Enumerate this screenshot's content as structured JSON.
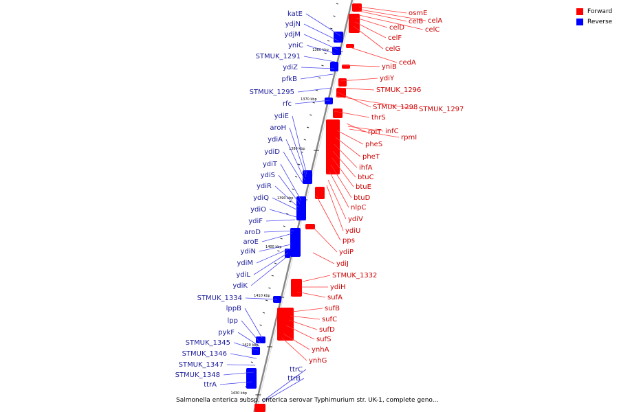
{
  "legend": {
    "forward_label": "Forward",
    "reverse_label": "Reverse",
    "forward_color": "#ff0000",
    "reverse_color": "#0000ff"
  },
  "colors": {
    "forward_label": "#cc0000",
    "reverse_label": "#1a1a99",
    "forward_line": "#ff3333",
    "reverse_line": "#4444ee",
    "backbone": "#888888"
  },
  "caption": "Salmonella enterica subsp. enterica serovar Typhimurium str. UK-1, complete geno...",
  "scale_ticks": [
    "1360 kbp",
    "1370 kbp",
    "1380 kbp",
    "1390 kbp",
    "1400 kbp",
    "1410 kbp",
    "1420 kbp",
    "1430 kbp"
  ],
  "reverse_genes": [
    "katE",
    "ydjN",
    "ydjM",
    "yniC",
    "STMUK_1291",
    "ydiZ",
    "pfkB",
    "STMUK_1295",
    "rfc",
    "ydiE",
    "aroH",
    "ydiA",
    "ydiD",
    "ydiT",
    "ydiS",
    "ydiR",
    "ydiQ",
    "ydiO",
    "ydiF",
    "aroD",
    "aroE",
    "ydiN",
    "ydiM",
    "ydiL",
    "ydiK",
    "STMUK_1334",
    "lppB",
    "lpp",
    "pykF",
    "STMUK_1345",
    "STMUK_1346",
    "STMUK_1347",
    "STMUK_1348",
    "ttrA",
    "ttrC",
    "ttrB"
  ],
  "forward_genes": [
    "osmE",
    "celA",
    "celB",
    "celC",
    "celD",
    "celF",
    "celG",
    "cedA",
    "yniB",
    "ydiY",
    "STMUK_1296",
    "STMUK_1298",
    "STMUK_1297",
    "thrS",
    "rplT",
    "infC",
    "rpmI",
    "pheS",
    "pheT",
    "ihfA",
    "btuC",
    "btuE",
    "btuD",
    "nlpC",
    "ydiV",
    "ydiU",
    "pps",
    "ydiP",
    "ydiJ",
    "STMUK_1332",
    "ydiH",
    "sufA",
    "sufB",
    "sufC",
    "sufD",
    "sufS",
    "ynhA",
    "ynhG"
  ]
}
